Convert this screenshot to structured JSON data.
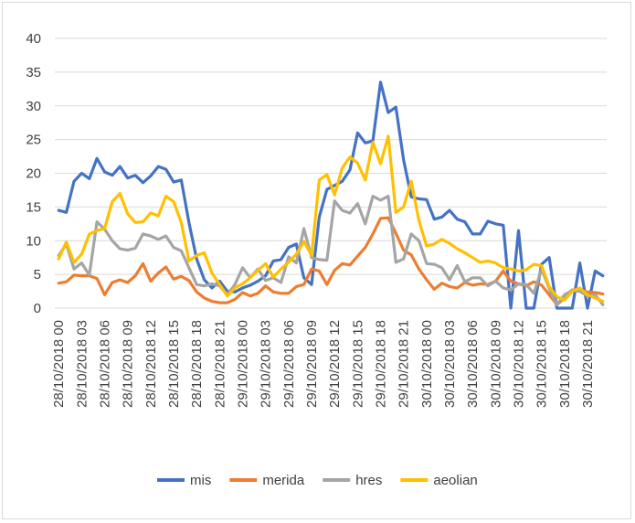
{
  "chart_data": {
    "type": "line",
    "title": "",
    "xlabel": "",
    "ylabel": "",
    "ylim": [
      0,
      40
    ],
    "yticks": [
      0,
      5,
      10,
      15,
      20,
      25,
      30,
      35,
      40
    ],
    "grid": "horizontal",
    "legend_position": "bottom",
    "x_start": "28/10/2018 00",
    "x_end": "30/10/2018 23",
    "x_step_hours": 1,
    "x_tick_labels": [
      "28/10/2018 00",
      "28/10/2018 03",
      "28/10/2018 06",
      "28/10/2018 09",
      "28/10/2018 12",
      "28/10/2018 15",
      "28/10/2018 18",
      "28/10/2018 21",
      "29/10/2018 00",
      "29/10/2018 03",
      "29/10/2018 06",
      "29/10/2018 09",
      "29/10/2018 12",
      "29/10/2018 15",
      "29/10/2018 18",
      "29/10/2018 21",
      "30/10/2018 00",
      "30/10/2018 03",
      "30/10/2018 06",
      "30/10/2018 09",
      "30/10/2018 12",
      "30/10/2018 15",
      "30/10/2018 18",
      "30/10/2018 21"
    ],
    "series": [
      {
        "name": "mis",
        "color": "#4472c4",
        "values": [
          14.5,
          14.2,
          18.8,
          20.0,
          19.2,
          22.2,
          20.2,
          19.7,
          21.0,
          19.3,
          19.7,
          18.6,
          19.6,
          21.0,
          20.6,
          18.7,
          19.0,
          12.7,
          7.3,
          4.2,
          3.0,
          4.0,
          2.5,
          2.4,
          3.0,
          3.4,
          4.0,
          4.8,
          7.0,
          7.2,
          9.0,
          9.5,
          4.5,
          3.5,
          13.5,
          17.6,
          18.2,
          18.8,
          20.5,
          26.0,
          24.5,
          24.8,
          33.5,
          29.0,
          29.8,
          22.0,
          16.5,
          16.2,
          16.1,
          13.2,
          13.5,
          14.5,
          13.2,
          12.8,
          11.0,
          11.0,
          12.9,
          12.5,
          12.3,
          0.0,
          11.5,
          0.0,
          0.0,
          6.5,
          7.5,
          0.0,
          0.0,
          0.0,
          6.7,
          0.0,
          5.5,
          4.8
        ]
      },
      {
        "name": "merida",
        "color": "#ed7d31",
        "values": [
          3.7,
          3.9,
          4.9,
          4.8,
          4.8,
          4.4,
          2.0,
          3.8,
          4.2,
          3.8,
          4.8,
          6.6,
          4.0,
          5.2,
          6.1,
          4.3,
          4.7,
          4.1,
          2.4,
          1.5,
          1.0,
          0.8,
          0.8,
          1.3,
          2.3,
          1.8,
          2.2,
          3.3,
          2.4,
          2.2,
          2.2,
          3.2,
          3.5,
          5.8,
          5.5,
          3.5,
          5.6,
          6.6,
          6.4,
          7.7,
          9.0,
          11.0,
          13.3,
          13.4,
          11.1,
          8.6,
          7.9,
          5.8,
          4.2,
          2.8,
          3.7,
          3.2,
          3.0,
          3.8,
          3.4,
          3.6,
          3.5,
          4.0,
          5.5,
          4.0,
          3.6,
          3.3,
          3.9,
          3.4,
          2.0,
          0.5,
          1.5,
          2.7,
          2.6,
          2.4,
          2.3,
          2.1
        ]
      },
      {
        "name": "hres",
        "color": "#a5a5a5",
        "values": [
          7.8,
          9.5,
          5.8,
          6.7,
          4.9,
          12.8,
          11.7,
          10.0,
          8.8,
          8.6,
          8.9,
          11.0,
          10.7,
          10.2,
          10.7,
          9.0,
          8.5,
          6.0,
          3.5,
          3.3,
          3.6,
          3.3,
          2.0,
          3.5,
          6.0,
          4.5,
          5.8,
          4.1,
          4.5,
          3.8,
          7.6,
          6.7,
          11.8,
          7.5,
          7.2,
          7.1,
          15.9,
          14.5,
          14.1,
          15.5,
          12.5,
          16.6,
          16.0,
          16.6,
          6.8,
          7.3,
          11.0,
          10.0,
          6.6,
          6.5,
          6.0,
          4.2,
          6.3,
          3.9,
          4.5,
          4.5,
          3.3,
          4.0,
          3.0,
          2.7,
          3.6,
          3.5,
          2.2,
          5.8,
          2.9,
          0.5,
          2.0,
          2.6,
          2.5,
          1.8,
          2.0,
          0.5
        ]
      },
      {
        "name": "aeolian",
        "color": "#ffc000",
        "values": [
          7.3,
          9.8,
          6.8,
          8.0,
          11.0,
          11.5,
          11.8,
          15.8,
          17.0,
          14.0,
          12.7,
          12.8,
          14.1,
          13.7,
          16.6,
          15.8,
          12.7,
          7.0,
          7.8,
          8.2,
          5.2,
          3.5,
          1.8,
          3.0,
          3.6,
          4.5,
          5.6,
          6.6,
          4.6,
          5.8,
          6.8,
          8.0,
          9.9,
          7.8,
          19.0,
          19.8,
          16.8,
          20.8,
          22.4,
          21.5,
          19.0,
          24.6,
          21.4,
          25.5,
          14.2,
          15.0,
          18.8,
          13.0,
          9.2,
          9.5,
          10.2,
          9.6,
          8.8,
          8.2,
          7.5,
          6.8,
          7.0,
          6.7,
          6.0,
          5.8,
          5.5,
          5.7,
          6.5,
          6.3,
          3.2,
          1.7,
          1.2,
          2.5,
          3.0,
          2.0,
          1.5,
          1.0
        ]
      }
    ]
  }
}
